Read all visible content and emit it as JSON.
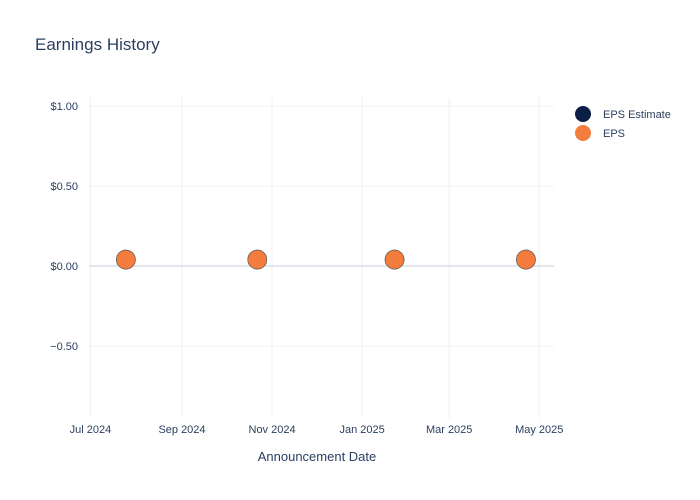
{
  "chart_data": {
    "type": "scatter",
    "title": "Earnings History",
    "xlabel": "Announcement Date",
    "ylabel": "",
    "x_ticks": [
      {
        "date": "2024-07-01",
        "label": "Jul 2024"
      },
      {
        "date": "2024-09-01",
        "label": "Sep 2024"
      },
      {
        "date": "2024-11-01",
        "label": "Nov 2024"
      },
      {
        "date": "2025-01-01",
        "label": "Jan 2025"
      },
      {
        "date": "2025-03-01",
        "label": "Mar 2025"
      },
      {
        "date": "2025-05-01",
        "label": "May 2025"
      }
    ],
    "y_ticks": [
      {
        "value": 1.0,
        "label": "$1.00"
      },
      {
        "value": 0.5,
        "label": "$0.50"
      },
      {
        "value": 0.0,
        "label": "$0.00"
      },
      {
        "value": -0.5,
        "label": "−0.50"
      }
    ],
    "xlim": [
      "2024-06-30",
      "2025-05-11"
    ],
    "ylim": [
      -0.95,
      1.05
    ],
    "grid": true,
    "legend_position": "top-right",
    "series": [
      {
        "name": "EPS Estimate",
        "color": "#0b1f44",
        "points": [
          {
            "date": "2024-07-25",
            "value": 0.04
          },
          {
            "date": "2024-10-22",
            "value": 0.04
          },
          {
            "date": "2025-01-23",
            "value": 0.04
          },
          {
            "date": "2025-04-22",
            "value": 0.04
          }
        ]
      },
      {
        "name": "EPS",
        "color": "#f47c3c",
        "points": [
          {
            "date": "2024-07-25",
            "value": 0.04
          },
          {
            "date": "2024-10-22",
            "value": 0.04
          },
          {
            "date": "2025-01-23",
            "value": 0.04
          },
          {
            "date": "2025-04-22",
            "value": 0.04
          }
        ]
      }
    ]
  }
}
